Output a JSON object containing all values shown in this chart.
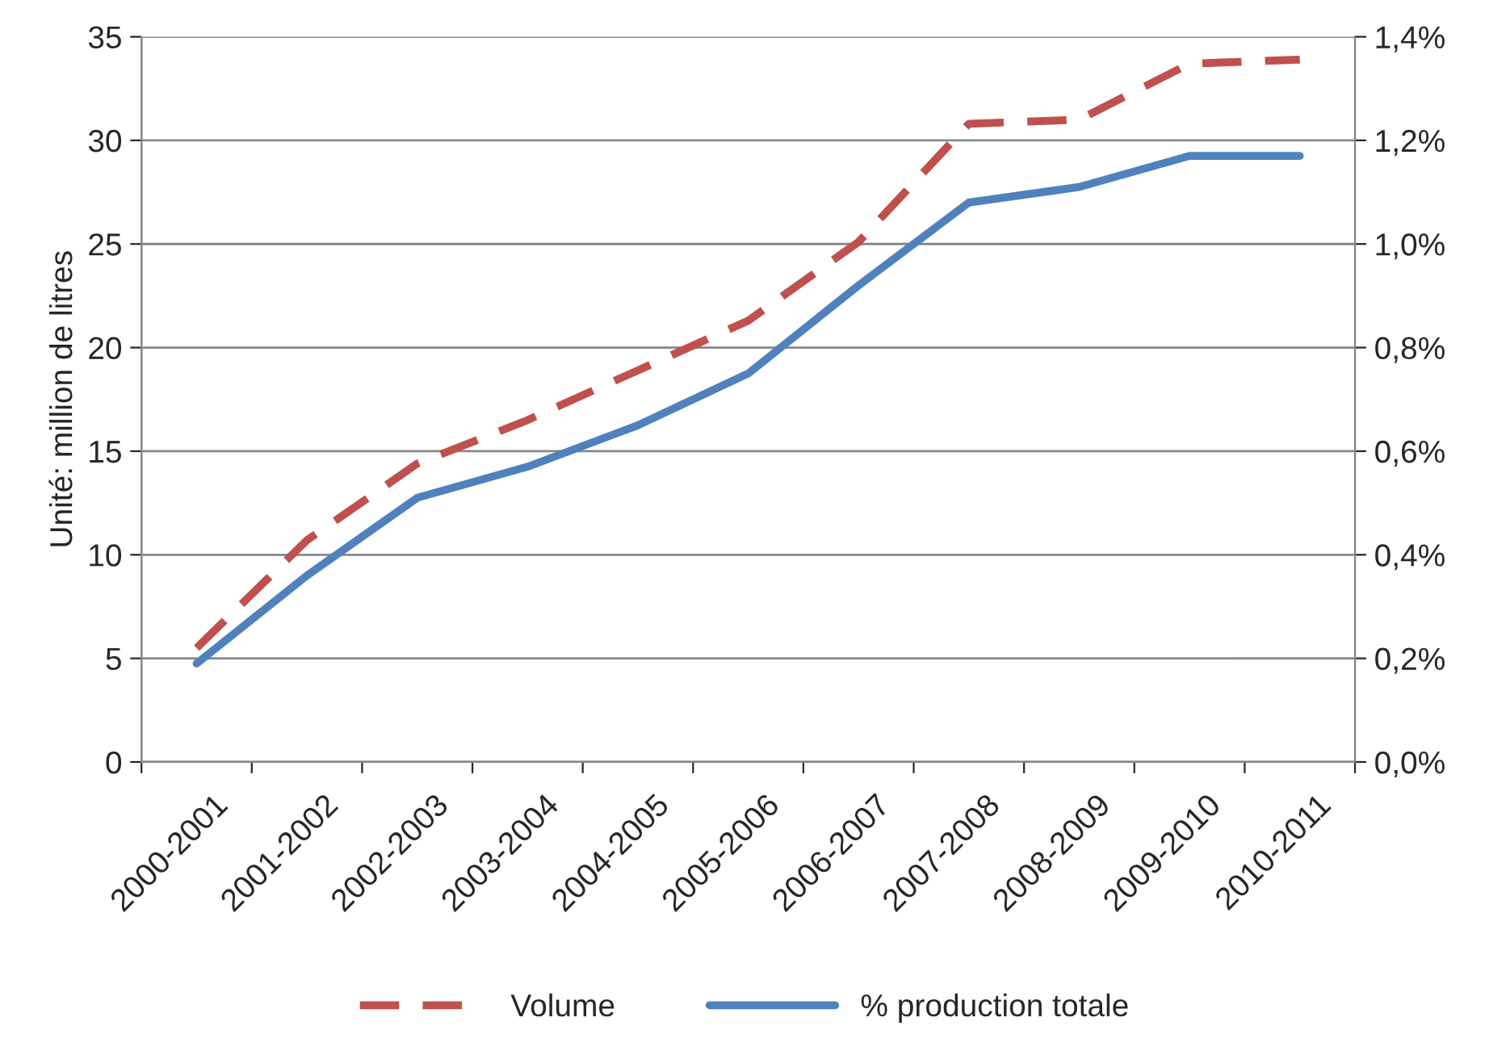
{
  "chart_data": {
    "type": "line",
    "categories": [
      "2000-2001",
      "2001-2002",
      "2002-2003",
      "2003-2004",
      "2004-2005",
      "2005-2006",
      "2006-2007",
      "2007-2008",
      "2008-2009",
      "2009-2010",
      "2010-2011"
    ],
    "series": [
      {
        "name": "Volume",
        "color": "#c0504d",
        "line_style": "dashed",
        "values": [
          5.5,
          10.7,
          14.4,
          16.5,
          18.9,
          21.3,
          25.1,
          30.8,
          31.0,
          33.7,
          33.9
        ]
      },
      {
        "name": "% production totale",
        "color": "#4f81bd",
        "line_style": "solid",
        "axis": "y2",
        "values": [
          0.19,
          0.36,
          0.51,
          0.57,
          0.65,
          0.75,
          0.92,
          1.08,
          1.11,
          1.17,
          1.17
        ]
      }
    ],
    "ylabel": "Unité: million de litres",
    "ylim": [
      0,
      35
    ],
    "yticks": [
      0,
      5,
      10,
      15,
      20,
      25,
      30,
      35
    ],
    "y2lim": [
      0,
      1.4
    ],
    "y2ticks": [
      {
        "value": 0.0,
        "label": "0,0%"
      },
      {
        "value": 0.2,
        "label": "0,2%"
      },
      {
        "value": 0.4,
        "label": "0,4%"
      },
      {
        "value": 0.6,
        "label": "0,6%"
      },
      {
        "value": 0.8,
        "label": "0,8%"
      },
      {
        "value": 1.0,
        "label": "1,0%"
      },
      {
        "value": 1.2,
        "label": "1,2%"
      },
      {
        "value": 1.4,
        "label": "1,4%"
      }
    ],
    "grid": "y",
    "legend": "bottom",
    "marker": "none"
  }
}
